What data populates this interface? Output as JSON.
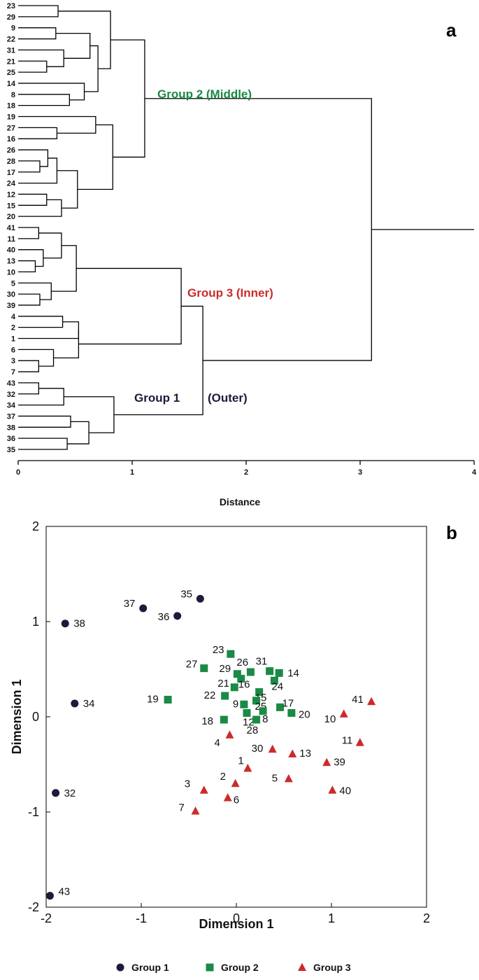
{
  "colors": {
    "group1": "#1b1b3a",
    "group2": "#1a8a46",
    "group3": "#cc2b2b",
    "line": "#000000"
  },
  "chart_data": [
    {
      "type": "dendrogram",
      "panel_label": "a",
      "xlabel": "Distance",
      "xticks": [
        0,
        1,
        2,
        3,
        4
      ],
      "xlim": [
        0,
        4
      ],
      "leaf_order": [
        "23",
        "29",
        "9",
        "22",
        "31",
        "21",
        "25",
        "14",
        "8",
        "18",
        "19",
        "27",
        "16",
        "26",
        "28",
        "17",
        "24",
        "12",
        "15",
        "20",
        "41",
        "11",
        "40",
        "13",
        "10",
        "5",
        "30",
        "39",
        "4",
        "2",
        "1",
        "6",
        "3",
        "7",
        "43",
        "32",
        "34",
        "37",
        "38",
        "36",
        "35"
      ],
      "merges": [
        {
          "a": "L0",
          "b": "L1",
          "h": 0.35
        },
        {
          "a": "L2",
          "b": "L3",
          "h": 0.33
        },
        {
          "a": "L5",
          "b": "L6",
          "h": 0.25
        },
        {
          "a": "L4",
          "b": "M2",
          "h": 0.4
        },
        {
          "a": "M1",
          "b": "M3",
          "h": 0.63
        },
        {
          "a": "L8",
          "b": "L9",
          "h": 0.45
        },
        {
          "a": "L7",
          "b": "M5",
          "h": 0.58
        },
        {
          "a": "M4",
          "b": "M6",
          "h": 0.7
        },
        {
          "a": "M0",
          "b": "M7",
          "h": 0.81
        },
        {
          "a": "L11",
          "b": "L12",
          "h": 0.34
        },
        {
          "a": "L10",
          "b": "M9",
          "h": 0.68
        },
        {
          "a": "L14",
          "b": "L15",
          "h": 0.19
        },
        {
          "a": "L13",
          "b": "M11",
          "h": 0.26
        },
        {
          "a": "M12",
          "b": "L16",
          "h": 0.34
        },
        {
          "a": "L17",
          "b": "L18",
          "h": 0.25
        },
        {
          "a": "M14",
          "b": "L19",
          "h": 0.38
        },
        {
          "a": "M13",
          "b": "M15",
          "h": 0.52
        },
        {
          "a": "M10",
          "b": "M16",
          "h": 0.83
        },
        {
          "a": "M8",
          "b": "M17",
          "h": 1.11
        },
        {
          "a": "L20",
          "b": "L21",
          "h": 0.18
        },
        {
          "a": "L23",
          "b": "L24",
          "h": 0.15
        },
        {
          "a": "L22",
          "b": "M20",
          "h": 0.22
        },
        {
          "a": "M19",
          "b": "M21",
          "h": 0.38
        },
        {
          "a": "L26",
          "b": "L27",
          "h": 0.19
        },
        {
          "a": "L25",
          "b": "M23",
          "h": 0.29
        },
        {
          "a": "M22",
          "b": "M24",
          "h": 0.51
        },
        {
          "a": "L28",
          "b": "L29",
          "h": 0.39
        },
        {
          "a": "M26",
          "b": "L30",
          "h": 0.53
        },
        {
          "a": "L32",
          "b": "L33",
          "h": 0.18
        },
        {
          "a": "L31",
          "b": "M28",
          "h": 0.31
        },
        {
          "a": "M27",
          "b": "M29",
          "h": 0.53
        },
        {
          "a": "M25",
          "b": "M30",
          "h": 1.43
        },
        {
          "a": "L34",
          "b": "L35",
          "h": 0.18
        },
        {
          "a": "M32",
          "b": "L36",
          "h": 0.4
        },
        {
          "a": "L37",
          "b": "L38",
          "h": 0.46
        },
        {
          "a": "L39",
          "b": "L40",
          "h": 0.43
        },
        {
          "a": "M34",
          "b": "M35",
          "h": 0.62
        },
        {
          "a": "M33",
          "b": "M36",
          "h": 0.84
        },
        {
          "a": "M31",
          "b": "M37",
          "h": 1.62
        },
        {
          "a": "M18",
          "b": "M38",
          "h": 3.1
        }
      ],
      "root_tail": 4.0,
      "group_labels": [
        {
          "text": "Group 2 (Middle)",
          "group": "group2"
        },
        {
          "text": "Group 3 (Inner)",
          "group": "group3"
        },
        {
          "text": "Group 1",
          "group": "group1"
        },
        {
          "text": "(Outer)",
          "group": "group1"
        }
      ]
    },
    {
      "type": "scatter",
      "panel_label": "b",
      "xlabel": "Dimension 1",
      "ylabel": "Dimension 1",
      "xlim": [
        -2,
        2
      ],
      "ylim": [
        -2,
        2
      ],
      "xticks": [
        "-2",
        "-1",
        "0",
        "1",
        "2"
      ],
      "yticks": [
        "2",
        "1",
        "0",
        "-1",
        "-2"
      ],
      "legend_position": "bottom",
      "series": [
        {
          "name": "Group 1",
          "marker": "circle",
          "color": "group1",
          "points": [
            {
              "id": "35",
              "x": -0.38,
              "y": 1.24
            },
            {
              "id": "37",
              "x": -0.98,
              "y": 1.14
            },
            {
              "id": "36",
              "x": -0.62,
              "y": 1.06
            },
            {
              "id": "38",
              "x": -1.8,
              "y": 0.98
            },
            {
              "id": "34",
              "x": -1.7,
              "y": 0.14
            },
            {
              "id": "32",
              "x": -1.9,
              "y": -0.8
            },
            {
              "id": "43",
              "x": -1.96,
              "y": -1.88
            }
          ]
        },
        {
          "name": "Group 2",
          "marker": "square",
          "color": "group2",
          "points": [
            {
              "id": "23",
              "x": -0.06,
              "y": 0.66
            },
            {
              "id": "27",
              "x": -0.34,
              "y": 0.51
            },
            {
              "id": "29",
              "x": 0.01,
              "y": 0.45
            },
            {
              "id": "26",
              "x": 0.15,
              "y": 0.47
            },
            {
              "id": "31",
              "x": 0.35,
              "y": 0.48
            },
            {
              "id": "14",
              "x": 0.45,
              "y": 0.46
            },
            {
              "id": "16",
              "x": 0.05,
              "y": 0.4
            },
            {
              "id": "24",
              "x": 0.4,
              "y": 0.38
            },
            {
              "id": "21",
              "x": -0.02,
              "y": 0.31
            },
            {
              "id": "15",
              "x": 0.24,
              "y": 0.26
            },
            {
              "id": "22",
              "x": -0.12,
              "y": 0.22
            },
            {
              "id": "19",
              "x": -0.72,
              "y": 0.18
            },
            {
              "id": "25",
              "x": 0.21,
              "y": 0.17
            },
            {
              "id": "9",
              "x": 0.08,
              "y": 0.13
            },
            {
              "id": "17",
              "x": 0.46,
              "y": 0.1
            },
            {
              "id": "20",
              "x": 0.58,
              "y": 0.04
            },
            {
              "id": "8",
              "x": 0.28,
              "y": 0.06
            },
            {
              "id": "12",
              "x": 0.11,
              "y": 0.04
            },
            {
              "id": "18",
              "x": -0.13,
              "y": -0.03
            },
            {
              "id": "28",
              "x": 0.21,
              "y": -0.03
            }
          ]
        },
        {
          "name": "Group 3",
          "marker": "triangle",
          "color": "group3",
          "points": [
            {
              "id": "41",
              "x": 1.42,
              "y": 0.16
            },
            {
              "id": "10",
              "x": 1.13,
              "y": 0.03
            },
            {
              "id": "4",
              "x": -0.07,
              "y": -0.19
            },
            {
              "id": "11",
              "x": 1.3,
              "y": -0.27
            },
            {
              "id": "30",
              "x": 0.38,
              "y": -0.34
            },
            {
              "id": "13",
              "x": 0.59,
              "y": -0.39
            },
            {
              "id": "39",
              "x": 0.95,
              "y": -0.48
            },
            {
              "id": "1",
              "x": 0.12,
              "y": -0.54
            },
            {
              "id": "5",
              "x": 0.55,
              "y": -0.65
            },
            {
              "id": "2",
              "x": -0.01,
              "y": -0.7
            },
            {
              "id": "40",
              "x": 1.01,
              "y": -0.77
            },
            {
              "id": "3",
              "x": -0.34,
              "y": -0.77
            },
            {
              "id": "6",
              "x": -0.09,
              "y": -0.85
            },
            {
              "id": "7",
              "x": -0.43,
              "y": -0.99
            }
          ]
        }
      ]
    }
  ]
}
